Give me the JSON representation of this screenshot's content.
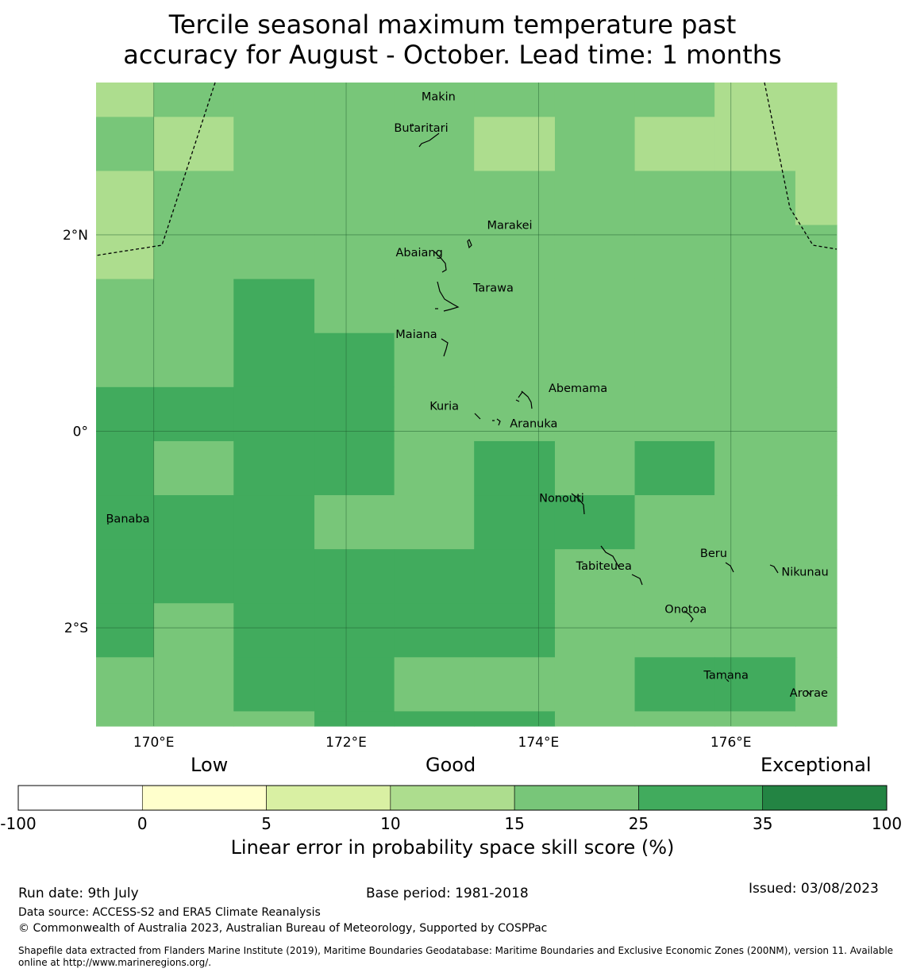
{
  "title_line1": "Tercile seasonal maximum temperature past",
  "title_line2": "accuracy for August - October. Lead time: 1 months",
  "map": {
    "lon_range": [
      169.4,
      177.1
    ],
    "lat_range": [
      -3.0,
      3.55
    ],
    "grid_cols_lon": [
      169.4,
      170.0,
      170.83,
      171.67,
      172.5,
      173.33,
      174.17,
      175.0,
      175.83,
      176.67,
      177.1
    ],
    "grid_rows_lat_top": [
      3.55,
      3.2,
      2.65,
      2.1,
      1.55,
      1.0,
      0.45,
      -0.1,
      -0.65,
      -1.2,
      -1.75,
      -2.3,
      -2.85
    ],
    "grid_rows_lat_bottom": [
      3.2,
      2.65,
      2.1,
      1.55,
      1.0,
      0.45,
      -0.1,
      -0.65,
      -1.2,
      -1.75,
      -2.3,
      -2.85,
      -3.0
    ],
    "cell_classes": [
      [
        3,
        4,
        4,
        4,
        4,
        4,
        4,
        4,
        3,
        3
      ],
      [
        4,
        3,
        4,
        4,
        4,
        3,
        4,
        3,
        3,
        3
      ],
      [
        3,
        4,
        4,
        4,
        4,
        4,
        4,
        4,
        4,
        3
      ],
      [
        3,
        4,
        4,
        4,
        4,
        4,
        4,
        4,
        4,
        4
      ],
      [
        4,
        4,
        5,
        4,
        4,
        4,
        4,
        4,
        4,
        4
      ],
      [
        4,
        4,
        5,
        5,
        4,
        4,
        4,
        4,
        4,
        4
      ],
      [
        5,
        5,
        5,
        5,
        4,
        4,
        4,
        4,
        4,
        4
      ],
      [
        5,
        4,
        5,
        5,
        4,
        5,
        4,
        5,
        4,
        4
      ],
      [
        5,
        5,
        5,
        4,
        4,
        5,
        5,
        4,
        4,
        4
      ],
      [
        5,
        5,
        5,
        5,
        5,
        5,
        4,
        4,
        4,
        4
      ],
      [
        5,
        4,
        5,
        5,
        5,
        5,
        4,
        4,
        4,
        4
      ],
      [
        4,
        4,
        5,
        5,
        4,
        4,
        4,
        5,
        5,
        4
      ],
      [
        4,
        4,
        4,
        5,
        5,
        5,
        4,
        4,
        4,
        4
      ]
    ],
    "x_ticks": [
      {
        "lon": 170,
        "label": "170°E"
      },
      {
        "lon": 172,
        "label": "172°E"
      },
      {
        "lon": 174,
        "label": "174°E"
      },
      {
        "lon": 176,
        "label": "176°E"
      }
    ],
    "y_ticks": [
      {
        "lat": 2,
        "label": "2°N"
      },
      {
        "lat": 0,
        "label": "0°"
      },
      {
        "lat": -2,
        "label": "2°S"
      }
    ],
    "islands": [
      {
        "name": "Makin",
        "lon": 172.96,
        "lat": 3.37
      },
      {
        "name": "Butaritari",
        "lon": 172.78,
        "lat": 3.05
      },
      {
        "name": "Marakei",
        "lon": 173.7,
        "lat": 2.06
      },
      {
        "name": "Abaiang",
        "lon": 172.76,
        "lat": 1.78
      },
      {
        "name": "Tarawa",
        "lon": 173.53,
        "lat": 1.42
      },
      {
        "name": "Maiana",
        "lon": 172.73,
        "lat": 0.95
      },
      {
        "name": "Abemama",
        "lon": 174.41,
        "lat": 0.4
      },
      {
        "name": "Kuria",
        "lon": 173.02,
        "lat": 0.22
      },
      {
        "name": "Aranuka",
        "lon": 173.95,
        "lat": 0.04
      },
      {
        "name": "Nonouti",
        "lon": 174.24,
        "lat": -0.72
      },
      {
        "name": "Banaba",
        "lon": 169.73,
        "lat": -0.93
      },
      {
        "name": "Beru",
        "lon": 175.82,
        "lat": -1.28
      },
      {
        "name": "Tabiteuea",
        "lon": 174.68,
        "lat": -1.41
      },
      {
        "name": "Nikunau",
        "lon": 176.77,
        "lat": -1.47
      },
      {
        "name": "Onotoa",
        "lon": 175.53,
        "lat": -1.85
      },
      {
        "name": "Tamana",
        "lon": 175.95,
        "lat": -2.52
      },
      {
        "name": "Arorae",
        "lon": 176.81,
        "lat": -2.7
      }
    ]
  },
  "legend": {
    "words": [
      "Low",
      "Good",
      "Exceptional"
    ],
    "ticks": [
      "-100",
      "0",
      "5",
      "10",
      "15",
      "25",
      "35",
      "100"
    ],
    "bins": [
      {
        "range": "-100 to 0",
        "color": "#ffffff"
      },
      {
        "range": "0 to 5",
        "color": "#ffffcc"
      },
      {
        "range": "5 to 10",
        "color": "#d9f0a3"
      },
      {
        "range": "10 to 15",
        "color": "#addd8e"
      },
      {
        "range": "15 to 25",
        "color": "#78c679"
      },
      {
        "range": "25 to 35",
        "color": "#41ab5d"
      },
      {
        "range": "35 to 100",
        "color": "#238443"
      }
    ],
    "label": "Linear error in probability space skill score (%)"
  },
  "footer": {
    "run_date": "Run date: 9th July",
    "base_period": "Base period: 1981-2018",
    "issued": "Issued: 03/08/2023",
    "data_source": "Data source: ACCESS-S2 and ERA5 Climate Reanalysis",
    "copyright": "© Commonwealth of Australia 2023, Australian Bureau of Meteorology, Supported by COSPPac",
    "shapefile": "Shapefile data extracted from Flanders Marine Institute (2019), Maritime Boundaries Geodatabase: Maritime Boundaries and Exclusive Economic Zones (200NM), version 11. Available online at http://www.marineregions.org/."
  }
}
